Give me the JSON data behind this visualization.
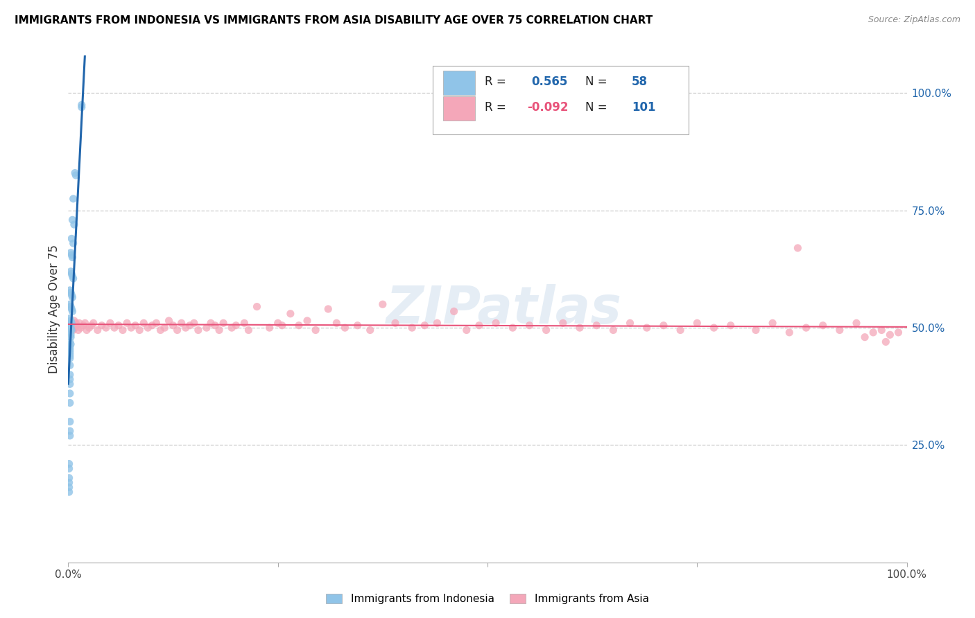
{
  "title": "IMMIGRANTS FROM INDONESIA VS IMMIGRANTS FROM ASIA DISABILITY AGE OVER 75 CORRELATION CHART",
  "source": "Source: ZipAtlas.com",
  "ylabel": "Disability Age Over 75",
  "ytick_labels": [
    "100.0%",
    "75.0%",
    "50.0%",
    "25.0%"
  ],
  "ytick_values": [
    1.0,
    0.75,
    0.5,
    0.25
  ],
  "xlim": [
    0.0,
    1.0
  ],
  "ylim": [
    0.0,
    1.08
  ],
  "legend_label1": "Immigrants from Indonesia",
  "legend_label2": "Immigrants from Asia",
  "r1": 0.565,
  "n1": 58,
  "r2": -0.092,
  "n2": 101,
  "color_blue": "#90c4e8",
  "color_pink": "#f4a7b9",
  "color_blue_line": "#2166ac",
  "color_pink_line": "#e8537a",
  "color_blue_text": "#2166ac",
  "color_pink_text": "#e8537a",
  "watermark": "ZIPatlas",
  "blue_scatter_x": [
    0.016,
    0.016,
    0.008,
    0.009,
    0.006,
    0.005,
    0.007,
    0.004,
    0.006,
    0.003,
    0.004,
    0.005,
    0.003,
    0.004,
    0.005,
    0.006,
    0.002,
    0.003,
    0.004,
    0.005,
    0.002,
    0.003,
    0.004,
    0.005,
    0.002,
    0.003,
    0.003,
    0.004,
    0.002,
    0.003,
    0.003,
    0.004,
    0.002,
    0.003,
    0.003,
    0.002,
    0.003,
    0.002,
    0.002,
    0.002,
    0.002,
    0.002,
    0.002,
    0.002,
    0.002,
    0.002,
    0.002,
    0.002,
    0.002,
    0.002,
    0.002,
    0.002,
    0.001,
    0.001,
    0.001,
    0.001,
    0.001,
    0.001
  ],
  "blue_scatter_y": [
    0.97,
    0.975,
    0.83,
    0.825,
    0.775,
    0.73,
    0.72,
    0.69,
    0.68,
    0.66,
    0.655,
    0.65,
    0.62,
    0.615,
    0.61,
    0.605,
    0.58,
    0.575,
    0.57,
    0.565,
    0.55,
    0.545,
    0.54,
    0.535,
    0.52,
    0.515,
    0.51,
    0.51,
    0.505,
    0.5,
    0.498,
    0.495,
    0.49,
    0.485,
    0.48,
    0.47,
    0.465,
    0.46,
    0.455,
    0.45,
    0.445,
    0.44,
    0.435,
    0.42,
    0.4,
    0.39,
    0.38,
    0.36,
    0.34,
    0.3,
    0.28,
    0.27,
    0.21,
    0.2,
    0.18,
    0.17,
    0.16,
    0.15
  ],
  "pink_scatter_x": [
    0.003,
    0.004,
    0.005,
    0.006,
    0.007,
    0.008,
    0.009,
    0.01,
    0.012,
    0.013,
    0.015,
    0.018,
    0.02,
    0.022,
    0.025,
    0.028,
    0.03,
    0.035,
    0.04,
    0.045,
    0.05,
    0.055,
    0.06,
    0.065,
    0.07,
    0.075,
    0.08,
    0.085,
    0.09,
    0.095,
    0.1,
    0.105,
    0.11,
    0.115,
    0.12,
    0.125,
    0.13,
    0.135,
    0.14,
    0.145,
    0.15,
    0.155,
    0.165,
    0.17,
    0.175,
    0.18,
    0.185,
    0.195,
    0.2,
    0.21,
    0.215,
    0.225,
    0.24,
    0.25,
    0.255,
    0.265,
    0.275,
    0.285,
    0.295,
    0.31,
    0.32,
    0.33,
    0.345,
    0.36,
    0.375,
    0.39,
    0.41,
    0.425,
    0.44,
    0.46,
    0.475,
    0.49,
    0.51,
    0.53,
    0.55,
    0.57,
    0.59,
    0.61,
    0.63,
    0.65,
    0.67,
    0.69,
    0.71,
    0.73,
    0.75,
    0.77,
    0.79,
    0.82,
    0.84,
    0.86,
    0.88,
    0.9,
    0.92,
    0.94,
    0.95,
    0.96,
    0.97,
    0.975,
    0.98,
    0.99,
    0.87
  ],
  "pink_scatter_y": [
    0.5,
    0.51,
    0.505,
    0.495,
    0.515,
    0.5,
    0.51,
    0.505,
    0.495,
    0.51,
    0.5,
    0.505,
    0.51,
    0.495,
    0.5,
    0.505,
    0.51,
    0.495,
    0.505,
    0.5,
    0.51,
    0.5,
    0.505,
    0.495,
    0.51,
    0.5,
    0.505,
    0.495,
    0.51,
    0.5,
    0.505,
    0.51,
    0.495,
    0.5,
    0.515,
    0.505,
    0.495,
    0.51,
    0.5,
    0.505,
    0.51,
    0.495,
    0.5,
    0.51,
    0.505,
    0.495,
    0.51,
    0.5,
    0.505,
    0.51,
    0.495,
    0.545,
    0.5,
    0.51,
    0.505,
    0.53,
    0.505,
    0.515,
    0.495,
    0.54,
    0.51,
    0.5,
    0.505,
    0.495,
    0.55,
    0.51,
    0.5,
    0.505,
    0.51,
    0.535,
    0.495,
    0.505,
    0.51,
    0.5,
    0.505,
    0.495,
    0.51,
    0.5,
    0.505,
    0.495,
    0.51,
    0.5,
    0.505,
    0.495,
    0.51,
    0.5,
    0.505,
    0.495,
    0.51,
    0.49,
    0.5,
    0.505,
    0.495,
    0.51,
    0.48,
    0.49,
    0.495,
    0.47,
    0.485,
    0.49,
    0.67
  ]
}
